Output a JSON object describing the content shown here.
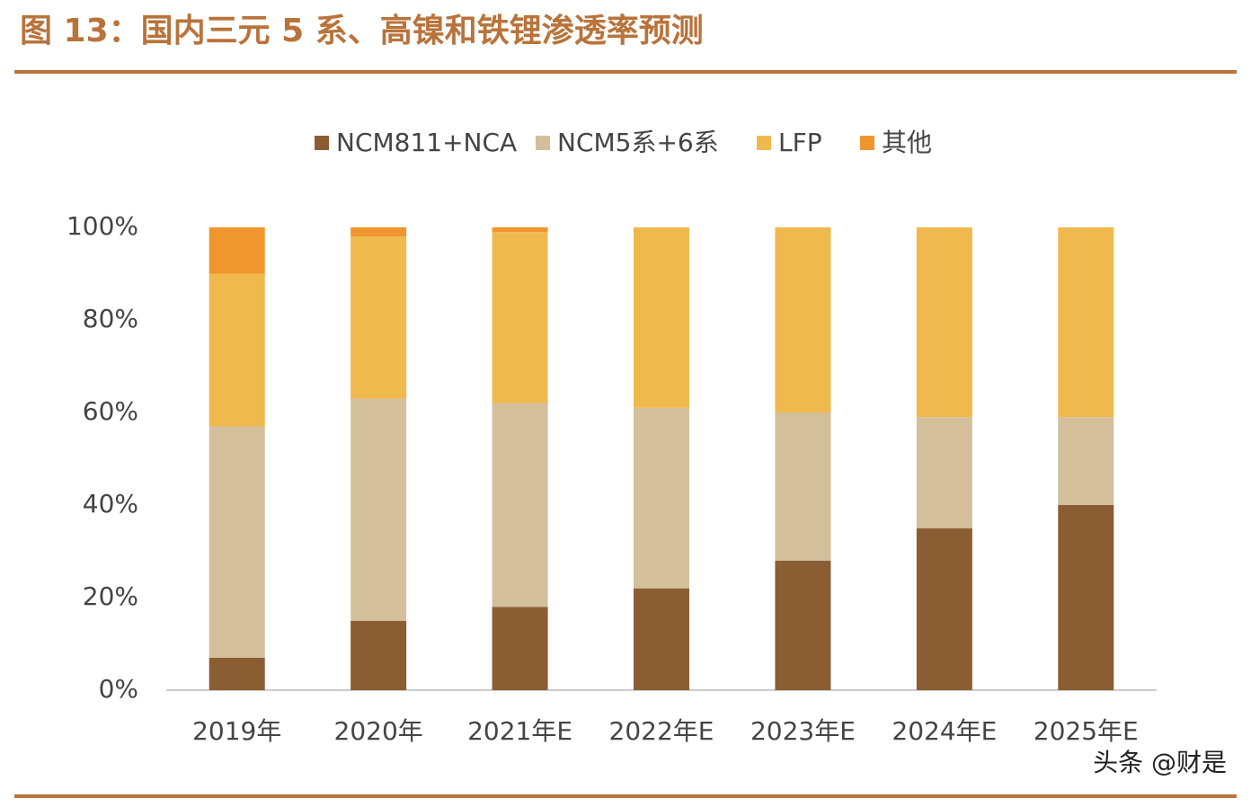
{
  "chart_data": {
    "type": "stacked-bar",
    "title": "图 13：国内三元 5 系、高镍和铁锂渗透率预测",
    "watermark": "头条 @财是",
    "categories": [
      "2019年",
      "2020年",
      "2021年E",
      "2022年E",
      "2023年E",
      "2024年E",
      "2025年E"
    ],
    "series": [
      {
        "name": "NCM811+NCA",
        "color": "#8a5e32",
        "values": [
          7,
          15,
          18,
          22,
          28,
          35,
          40
        ]
      },
      {
        "name": "NCM5系+6系",
        "color": "#d4bf9b",
        "values": [
          50,
          48,
          44,
          39,
          32,
          24,
          19
        ]
      },
      {
        "name": "LFP",
        "color": "#f0b94e",
        "values": [
          33,
          35,
          37,
          39,
          40,
          41,
          41
        ]
      },
      {
        "name": "其他",
        "color": "#f0962e",
        "values": [
          10,
          2,
          1,
          0,
          0,
          0,
          0
        ]
      }
    ],
    "ylim": [
      0,
      100
    ],
    "yticks": [
      {
        "value": 0,
        "label": "0%"
      },
      {
        "value": 20,
        "label": "20%"
      },
      {
        "value": 40,
        "label": "40%"
      },
      {
        "value": 60,
        "label": "60%"
      },
      {
        "value": 80,
        "label": "80%"
      },
      {
        "value": 100,
        "label": "100%"
      }
    ]
  }
}
